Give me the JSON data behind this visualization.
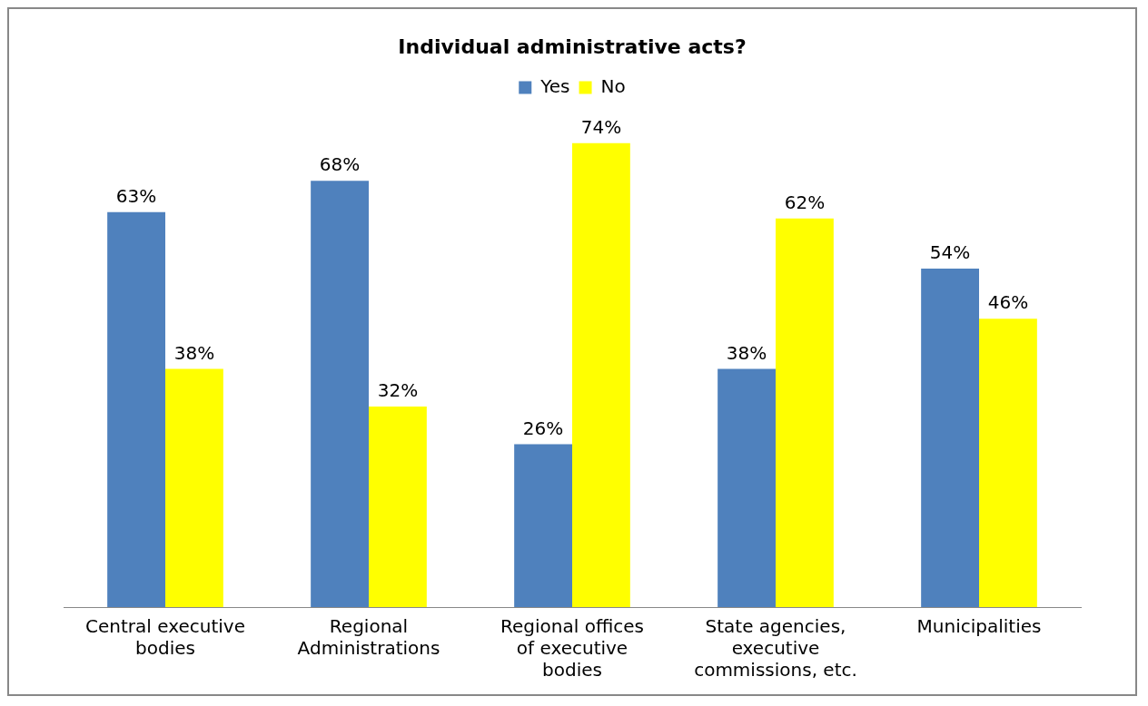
{
  "chart_data": {
    "type": "bar",
    "title": "Individual administrative acts?",
    "categories": [
      "Central executive bodies",
      "Regional Administrations",
      "Regional offices of executive bodies",
      "State agencies, executive commissions, etc.",
      "Municipalities"
    ],
    "series": [
      {
        "name": "Yes",
        "color": "#4f81bd",
        "values": [
          63,
          68,
          26,
          38,
          54
        ],
        "value_labels": [
          "63%",
          "68%",
          "26%",
          "38%",
          "54%"
        ]
      },
      {
        "name": "No",
        "color": "#ffff00",
        "values": [
          38,
          32,
          74,
          62,
          46
        ],
        "value_labels": [
          "38%",
          "32%",
          "74%",
          "62%",
          "46%"
        ]
      }
    ],
    "legend": "top",
    "grid": false
  }
}
